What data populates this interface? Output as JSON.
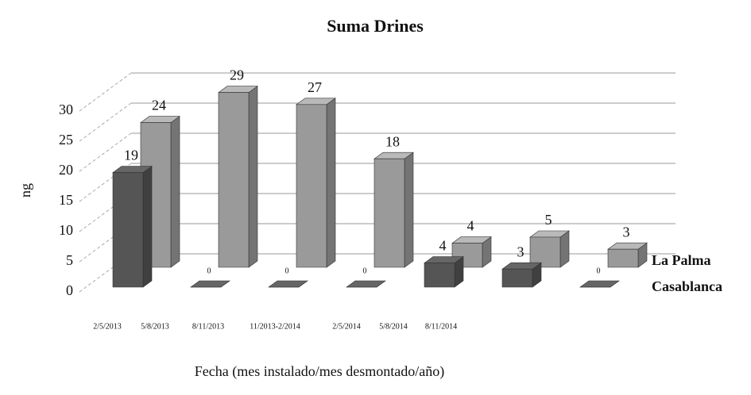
{
  "chart_data": {
    "type": "bar3d",
    "title": "Suma Drines",
    "y_label": "ng",
    "x_label": "Fecha (mes instalado/mes desmontado/año)",
    "categories": [
      "2/5/2013",
      "5/8/2013",
      "8/11/2013",
      "11/2013-2/2014",
      "2/5/2014",
      "5/8/2014",
      "8/11/2014"
    ],
    "series": [
      {
        "name": "La Palma",
        "color": "#9a9a9a",
        "values": [
          24,
          29,
          27,
          18,
          4,
          5,
          3
        ]
      },
      {
        "name": "Casablanca",
        "color": "#555555",
        "values": [
          19,
          0,
          0,
          0,
          4,
          3,
          0
        ]
      }
    ],
    "ylim": [
      0,
      30
    ],
    "yticks": [
      0,
      5,
      10,
      15,
      20,
      25,
      30
    ],
    "grid": true
  }
}
